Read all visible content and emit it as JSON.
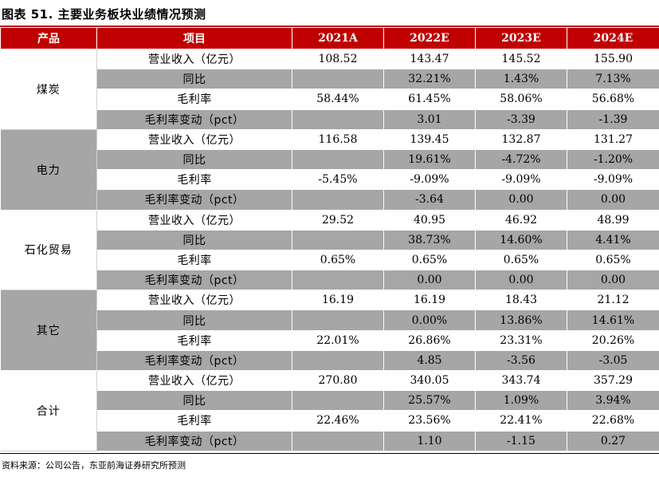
{
  "title": "图表 51. 主要业务板块业绩情况预测",
  "header": {
    "product": "产品",
    "item": "项目",
    "years": [
      "2021A",
      "2022E",
      "2023E",
      "2024E"
    ]
  },
  "groups": [
    {
      "name": "煤炭",
      "rows": [
        {
          "item": "营业收入（亿元）",
          "values": [
            "108.52",
            "143.47",
            "145.52",
            "155.90"
          ]
        },
        {
          "item": "同比",
          "values": [
            "",
            "32.21%",
            "1.43%",
            "7.13%"
          ]
        },
        {
          "item": "毛利率",
          "values": [
            "58.44%",
            "61.45%",
            "58.06%",
            "56.68%"
          ]
        },
        {
          "item": "毛利率变动（pct）",
          "values": [
            "",
            "3.01",
            "-3.39",
            "-1.39"
          ]
        }
      ]
    },
    {
      "name": "电力",
      "rows": [
        {
          "item": "营业收入（亿元）",
          "values": [
            "116.58",
            "139.45",
            "132.87",
            "131.27"
          ]
        },
        {
          "item": "同比",
          "values": [
            "",
            "19.61%",
            "-4.72%",
            "-1.20%"
          ]
        },
        {
          "item": "毛利率",
          "values": [
            "-5.45%",
            "-9.09%",
            "-9.09%",
            "-9.09%"
          ]
        },
        {
          "item": "毛利率变动（pct）",
          "values": [
            "",
            "-3.64",
            "0.00",
            "0.00"
          ]
        }
      ]
    },
    {
      "name": "石化贸易",
      "rows": [
        {
          "item": "营业收入（亿元）",
          "values": [
            "29.52",
            "40.95",
            "46.92",
            "48.99"
          ]
        },
        {
          "item": "同比",
          "values": [
            "",
            "38.73%",
            "14.60%",
            "4.41%"
          ]
        },
        {
          "item": "毛利率",
          "values": [
            "0.65%",
            "0.65%",
            "0.65%",
            "0.65%"
          ]
        },
        {
          "item": "毛利率变动（pct）",
          "values": [
            "",
            "0.00",
            "0.00",
            "0.00"
          ]
        }
      ]
    },
    {
      "name": "其它",
      "rows": [
        {
          "item": "营业收入（亿元）",
          "values": [
            "16.19",
            "16.19",
            "18.43",
            "21.12"
          ]
        },
        {
          "item": "同比",
          "values": [
            "",
            "0.00%",
            "13.86%",
            "14.61%"
          ]
        },
        {
          "item": "毛利率",
          "values": [
            "22.01%",
            "26.86%",
            "23.31%",
            "20.26%"
          ]
        },
        {
          "item": "毛利率变动（pct）",
          "values": [
            "",
            "4.85",
            "-3.56",
            "-3.05"
          ]
        }
      ]
    },
    {
      "name": "合计",
      "rows": [
        {
          "item": "营业收入（亿元）",
          "values": [
            "270.80",
            "340.05",
            "343.74",
            "357.29"
          ]
        },
        {
          "item": "同比",
          "values": [
            "",
            "25.57%",
            "1.09%",
            "3.94%"
          ]
        },
        {
          "item": "毛利率",
          "values": [
            "22.46%",
            "23.56%",
            "22.41%",
            "22.68%"
          ]
        },
        {
          "item": "毛利率变动（pct）",
          "values": [
            "",
            "1.10",
            "-1.15",
            "0.27"
          ]
        }
      ]
    }
  ],
  "source": "资料来源：公司公告，东亚前海证券研究所预测",
  "colors": {
    "header_bg": "#c00000",
    "shade_bg": "#a6a6a6"
  }
}
